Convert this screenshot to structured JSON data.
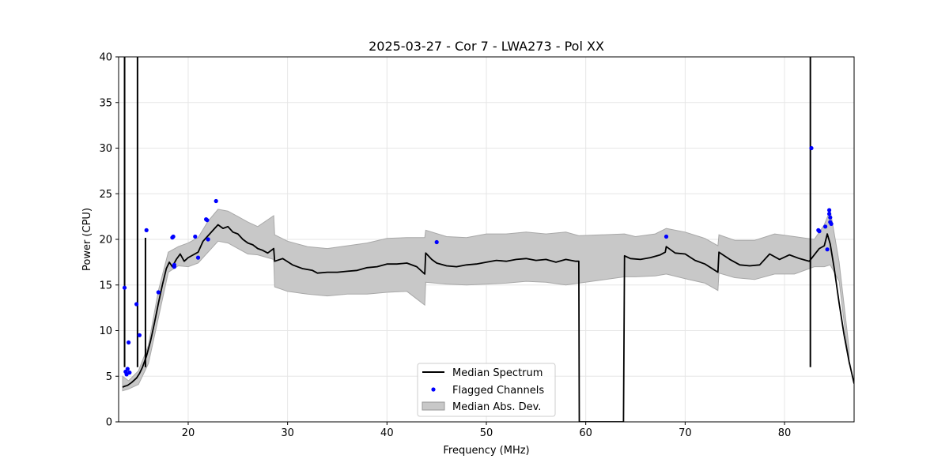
{
  "chart_data": {
    "type": "line",
    "title": "2025-03-27 - Cor 7 - LWA273 - Pol XX",
    "xlabel": "Frequency (MHz)",
    "ylabel": "Power (CPU)",
    "xlim": [
      13,
      87
    ],
    "ylim": [
      0,
      40
    ],
    "xticks": [
      20,
      30,
      40,
      50,
      60,
      70,
      80
    ],
    "yticks": [
      0,
      5,
      10,
      15,
      20,
      25,
      30,
      35,
      40
    ],
    "grid": true,
    "legend_position": "lower-center",
    "legend": [
      {
        "label": "Median Spectrum",
        "kind": "line",
        "color": "#000000"
      },
      {
        "label": "Flagged Channels",
        "kind": "dot",
        "color": "#0000ff"
      },
      {
        "label": "Median Abs. Dev.",
        "kind": "patch",
        "color": "#c8c8c8"
      }
    ],
    "series": [
      {
        "name": "Median Spectrum",
        "color": "#000000",
        "x": [
          13.4,
          13.6,
          13.9,
          14.3,
          14.8,
          15.1,
          15.4,
          15.8,
          16.2,
          16.6,
          17.0,
          17.4,
          17.8,
          18.1,
          18.4,
          18.8,
          19.2,
          19.6,
          20.0,
          20.5,
          21.0,
          21.5,
          22.0,
          22.5,
          23.0,
          23.5,
          24.0,
          24.5,
          25.0,
          25.5,
          26.0,
          26.5,
          27.0,
          27.5,
          28.0,
          28.6,
          28.7,
          29.5,
          30.5,
          31.5,
          32.5,
          33.0,
          34.0,
          35.0,
          36.0,
          37.0,
          38.0,
          39.0,
          40.0,
          41.0,
          42.0,
          43.0,
          43.8,
          43.9,
          44.5,
          45.0,
          46.0,
          47.0,
          48.0,
          49.0,
          50.0,
          51.0,
          52.0,
          53.0,
          54.0,
          55.0,
          56.0,
          57.0,
          58.0,
          59.0,
          59.3,
          59.35,
          63.8,
          63.9,
          64.5,
          65.5,
          66.5,
          67.5,
          68.0,
          68.1,
          69.0,
          70.0,
          71.0,
          72.0,
          73.0,
          73.3,
          73.4,
          74.5,
          75.5,
          76.5,
          77.5,
          78.5,
          79.5,
          80.5,
          81.5,
          82.5,
          83.0,
          83.5,
          84.0,
          84.3,
          84.6,
          85.0,
          85.5,
          86.0,
          86.5,
          87.0
        ],
        "values": [
          3.8,
          3.9,
          4.0,
          4.3,
          4.8,
          5.3,
          6.0,
          7.2,
          8.8,
          10.8,
          13.0,
          15.0,
          16.8,
          17.5,
          17.0,
          17.8,
          18.4,
          17.6,
          18.0,
          18.3,
          18.6,
          19.8,
          20.4,
          21.0,
          21.6,
          21.2,
          21.4,
          20.8,
          20.6,
          20.0,
          19.6,
          19.4,
          19.0,
          18.8,
          18.5,
          19.0,
          17.6,
          17.9,
          17.2,
          16.8,
          16.6,
          16.3,
          16.4,
          16.4,
          16.5,
          16.6,
          16.9,
          17.0,
          17.3,
          17.3,
          17.4,
          17.0,
          16.2,
          18.5,
          17.8,
          17.4,
          17.1,
          17.0,
          17.2,
          17.3,
          17.5,
          17.7,
          17.6,
          17.8,
          17.9,
          17.7,
          17.8,
          17.5,
          17.8,
          17.6,
          17.6,
          0.0,
          0.0,
          18.2,
          17.9,
          17.8,
          18.0,
          18.3,
          18.6,
          19.2,
          18.5,
          18.4,
          17.7,
          17.3,
          16.6,
          16.4,
          18.6,
          17.8,
          17.2,
          17.1,
          17.2,
          18.4,
          17.8,
          18.3,
          17.9,
          17.6,
          18.3,
          19.0,
          19.3,
          20.6,
          19.5,
          16.8,
          13.0,
          9.5,
          6.6,
          4.2
        ]
      }
    ],
    "mad_band": {
      "name": "Median Abs. Dev.",
      "color": "#c8c8c8",
      "x": [
        13.4,
        14.0,
        15.0,
        16.0,
        17.0,
        18.0,
        19.0,
        20.0,
        21.0,
        22.0,
        23.0,
        24.0,
        25.0,
        26.0,
        27.0,
        28.6,
        28.7,
        30.0,
        32.0,
        34.0,
        36.0,
        38.0,
        40.0,
        42.0,
        43.8,
        43.9,
        46.0,
        48.0,
        50.0,
        52.0,
        54.0,
        56.0,
        58.0,
        59.3,
        63.9,
        65.0,
        67.0,
        68.1,
        70.0,
        72.0,
        73.3,
        73.4,
        75.0,
        77.0,
        79.0,
        81.0,
        83.0,
        84.0,
        84.6,
        85.5,
        86.5
      ],
      "upper": [
        5.0,
        4.5,
        5.6,
        8.4,
        14.4,
        18.6,
        19.2,
        19.6,
        20.2,
        22.0,
        23.3,
        23.1,
        22.5,
        21.9,
        21.4,
        22.6,
        20.5,
        19.8,
        19.2,
        19.0,
        19.3,
        19.6,
        20.1,
        20.2,
        20.2,
        21.0,
        20.3,
        20.2,
        20.6,
        20.6,
        20.8,
        20.6,
        20.8,
        20.4,
        20.6,
        20.3,
        20.6,
        21.2,
        20.8,
        20.1,
        19.3,
        20.5,
        19.9,
        19.9,
        20.6,
        20.3,
        20.0,
        21.6,
        23.2,
        17.5,
        8.0
      ],
      "lower": [
        3.4,
        3.6,
        4.1,
        6.4,
        11.4,
        16.4,
        17.1,
        17.0,
        17.4,
        18.6,
        19.8,
        19.6,
        19.0,
        18.4,
        18.3,
        17.8,
        14.8,
        14.3,
        14.0,
        13.8,
        14.0,
        14.0,
        14.2,
        14.3,
        12.8,
        15.3,
        15.1,
        15.0,
        15.1,
        15.2,
        15.4,
        15.3,
        15.0,
        15.2,
        15.9,
        15.9,
        16.0,
        16.2,
        15.7,
        15.2,
        14.4,
        16.3,
        15.8,
        15.6,
        16.2,
        16.2,
        17.0,
        17.0,
        17.2,
        15.4,
        6.3
      ]
    },
    "spikes": [
      {
        "x": 13.6,
        "y": 40.0
      },
      {
        "x": 14.9,
        "y": 40.0
      },
      {
        "x": 15.7,
        "y": 20.0
      },
      {
        "x": 82.6,
        "y": 40.0
      }
    ],
    "flagged_points": {
      "name": "Flagged Channels",
      "color": "#0000ff",
      "x": [
        13.6,
        13.7,
        13.8,
        13.9,
        14.0,
        14.1,
        14.8,
        15.1,
        15.8,
        17.0,
        18.4,
        18.5,
        18.6,
        18.6,
        20.7,
        21.0,
        21.8,
        21.9,
        22.0,
        22.8,
        45.0,
        68.1,
        82.7,
        83.4,
        83.5,
        84.1,
        84.3,
        84.5,
        84.5,
        84.6,
        84.6,
        84.7
      ],
      "values": [
        14.7,
        5.5,
        5.2,
        5.8,
        8.7,
        5.4,
        12.9,
        9.5,
        21.0,
        14.2,
        20.2,
        20.3,
        17.2,
        17.0,
        20.3,
        18.0,
        22.2,
        22.1,
        20.0,
        24.2,
        19.7,
        20.3,
        30.0,
        21.0,
        20.9,
        21.4,
        18.9,
        23.2,
        22.8,
        22.4,
        21.9,
        21.7
      ]
    }
  }
}
